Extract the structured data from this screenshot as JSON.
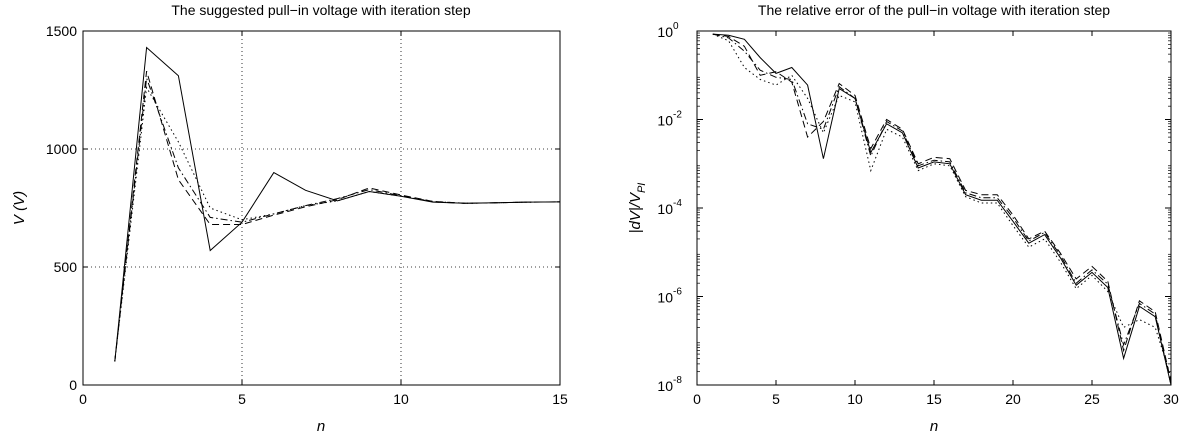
{
  "chart_data": [
    {
      "type": "line",
      "title": "The suggested pull−in voltage with iteration step",
      "xlabel": "n",
      "ylabel": "V (V)",
      "xlim": [
        0,
        15
      ],
      "ylim": [
        0,
        1500
      ],
      "x_ticks": [
        "0",
        "5",
        "10",
        "15"
      ],
      "y_ticks": [
        "0",
        "500",
        "1000",
        "1500"
      ],
      "grid": true,
      "series": [
        {
          "style": "solid",
          "x": [
            1,
            2,
            3,
            4,
            5,
            6,
            7,
            8,
            9,
            10,
            11,
            12,
            13,
            14,
            15
          ],
          "y": [
            100,
            1430,
            1310,
            570,
            690,
            900,
            825,
            780,
            820,
            800,
            775,
            770,
            772,
            775,
            776
          ]
        },
        {
          "style": "dashed",
          "x": [
            1,
            2,
            3,
            4,
            5,
            6,
            7,
            8,
            9,
            10,
            11,
            12,
            13,
            14,
            15
          ],
          "y": [
            100,
            1330,
            870,
            680,
            680,
            720,
            755,
            785,
            835,
            805,
            778,
            770,
            772,
            775,
            776
          ]
        },
        {
          "style": "dotted",
          "x": [
            1,
            2,
            3,
            4,
            5,
            6,
            7,
            8,
            9,
            10,
            11,
            12,
            13,
            14,
            15
          ],
          "y": [
            100,
            1260,
            1030,
            750,
            700,
            725,
            760,
            780,
            820,
            800,
            778,
            770,
            772,
            775,
            776
          ]
        },
        {
          "style": "dashdot",
          "x": [
            1,
            2,
            3,
            4,
            5,
            6,
            7,
            8,
            9,
            10,
            11,
            12,
            13,
            14,
            15
          ],
          "y": [
            100,
            1300,
            920,
            710,
            690,
            725,
            760,
            790,
            828,
            802,
            776,
            770,
            772,
            775,
            776
          ]
        }
      ]
    },
    {
      "type": "line",
      "title": "The relative error of the pull−in voltage with iteration step",
      "xlabel": "n",
      "ylabel": "|dV|/V",
      "ylabel_sub": "PI",
      "yscale": "log",
      "xlim": [
        0,
        30
      ],
      "ylim": [
        1e-08,
        1
      ],
      "x_ticks": [
        "0",
        "5",
        "10",
        "15",
        "20",
        "25",
        "30"
      ],
      "y_ticks": [
        "10",
        "10",
        "10",
        "10",
        "10"
      ],
      "y_tick_exponents": [
        "0",
        "-2",
        "-4",
        "-6",
        "-8"
      ],
      "y_tick_values": [
        1,
        0.01,
        0.0001,
        1e-06,
        1e-08
      ],
      "grid": false,
      "series": [
        {
          "style": "solid",
          "x": [
            1,
            2,
            3,
            4,
            5,
            6,
            7,
            8,
            9,
            10,
            11,
            12,
            13,
            14,
            15,
            16,
            17,
            18,
            19,
            20,
            21,
            22,
            23,
            24,
            25,
            26,
            27,
            28,
            29,
            30
          ],
          "y": [
            0.85,
            0.8,
            0.65,
            0.25,
            0.11,
            0.15,
            0.06,
            0.0013,
            0.05,
            0.03,
            0.0018,
            0.008,
            0.005,
            0.0008,
            0.0011,
            0.001,
            0.0002,
            0.00015,
            0.00015,
            5e-05,
            1.6e-05,
            2.5e-05,
            7.5e-06,
            1.8e-06,
            3.5e-06,
            1.6e-06,
            4e-08,
            6e-07,
            3.5e-07,
            9e-09
          ]
        },
        {
          "style": "dashed",
          "x": [
            1,
            2,
            3,
            4,
            5,
            6,
            7,
            8,
            9,
            10,
            11,
            12,
            13,
            14,
            15,
            16,
            17,
            18,
            19,
            20,
            21,
            22,
            23,
            24,
            25,
            26,
            27,
            28,
            29,
            30
          ],
          "y": [
            0.85,
            0.75,
            0.45,
            0.1,
            0.12,
            0.07,
            0.004,
            0.009,
            0.065,
            0.035,
            0.0022,
            0.01,
            0.006,
            0.001,
            0.0014,
            0.0013,
            0.00025,
            0.0002,
            0.0002,
            7e-05,
            2e-05,
            3e-05,
            9.5e-06,
            2.5e-06,
            4.8e-06,
            2.2e-06,
            6e-08,
            8e-07,
            4.5e-07,
            1.2e-08
          ]
        },
        {
          "style": "dotted",
          "x": [
            1,
            2,
            3,
            4,
            5,
            6,
            7,
            8,
            9,
            10,
            11,
            12,
            13,
            14,
            15,
            16,
            17,
            18,
            19,
            20,
            21,
            22,
            23,
            24,
            25,
            26,
            27,
            28,
            29,
            30
          ],
          "y": [
            0.85,
            0.6,
            0.15,
            0.08,
            0.06,
            0.1,
            0.03,
            0.005,
            0.035,
            0.025,
            0.0007,
            0.006,
            0.004,
            0.0007,
            0.001,
            0.0009,
            0.00018,
            0.00013,
            0.00013,
            4e-05,
            1.3e-05,
            2e-05,
            6e-06,
            1.5e-06,
            3e-06,
            1.3e-06,
            2e-07,
            3e-07,
            2e-07,
            1.5e-08
          ]
        },
        {
          "style": "dashdot",
          "x": [
            1,
            2,
            3,
            4,
            5,
            6,
            7,
            8,
            9,
            10,
            11,
            12,
            13,
            14,
            15,
            16,
            17,
            18,
            19,
            20,
            21,
            22,
            23,
            24,
            25,
            26,
            27,
            28,
            29,
            30
          ],
          "y": [
            0.85,
            0.7,
            0.35,
            0.13,
            0.09,
            0.08,
            0.008,
            0.006,
            0.055,
            0.03,
            0.0015,
            0.009,
            0.0055,
            0.0009,
            0.0012,
            0.0011,
            0.00022,
            0.00017,
            0.00017,
            6e-05,
            1.8e-05,
            2.8e-05,
            8.5e-06,
            2e-06,
            4e-06,
            1.9e-06,
            8e-08,
            7e-07,
            4e-07,
            1e-08
          ]
        }
      ]
    }
  ]
}
